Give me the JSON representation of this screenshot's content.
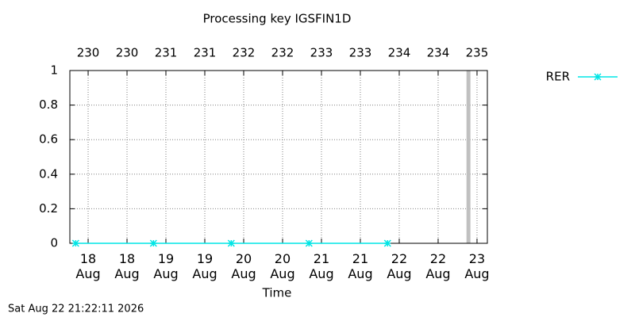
{
  "chart_data": {
    "type": "line",
    "title": "Processing key IGSFIN1D",
    "xlabel": "Time",
    "footnote": "Sat Aug 22 21:22:11 2026",
    "x": [
      229.84,
      230.84,
      231.84,
      232.84,
      233.85
    ],
    "series": [
      {
        "name": "RER",
        "color": "#00e5e5",
        "values": [
          0,
          0,
          0,
          0,
          0
        ]
      }
    ],
    "xlim": [
      229.765,
      235.133
    ],
    "xticks": [
      {
        "value": 230,
        "label": "18\nAug"
      },
      {
        "value": 230.5,
        "label": "18\nAug"
      },
      {
        "value": 231,
        "label": "19\nAug"
      },
      {
        "value": 231.5,
        "label": "19\nAug"
      },
      {
        "value": 232,
        "label": "20\nAug"
      },
      {
        "value": 232.5,
        "label": "20\nAug"
      },
      {
        "value": 233,
        "label": "21\nAug"
      },
      {
        "value": 233.5,
        "label": "21\nAug"
      },
      {
        "value": 234,
        "label": "22\nAug"
      },
      {
        "value": 234.5,
        "label": "22\nAug"
      },
      {
        "value": 235,
        "label": "23\nAug"
      }
    ],
    "x2ticks": [
      230,
      {
        "value": 230.5,
        "label": "230"
      },
      231,
      {
        "value": 231.5,
        "label": "231"
      },
      232,
      {
        "value": 232.5,
        "label": "232"
      },
      233,
      {
        "value": 233.5,
        "label": "233"
      },
      234,
      {
        "value": 234.5,
        "label": "234"
      },
      235
    ],
    "ylim": [
      0,
      1
    ],
    "yticks": [
      0,
      0.2,
      0.4,
      0.6,
      0.8,
      1
    ],
    "grid": true,
    "legend": "top-right",
    "now_marker": 234.89,
    "now_marker_color": "#c0c0c0"
  }
}
